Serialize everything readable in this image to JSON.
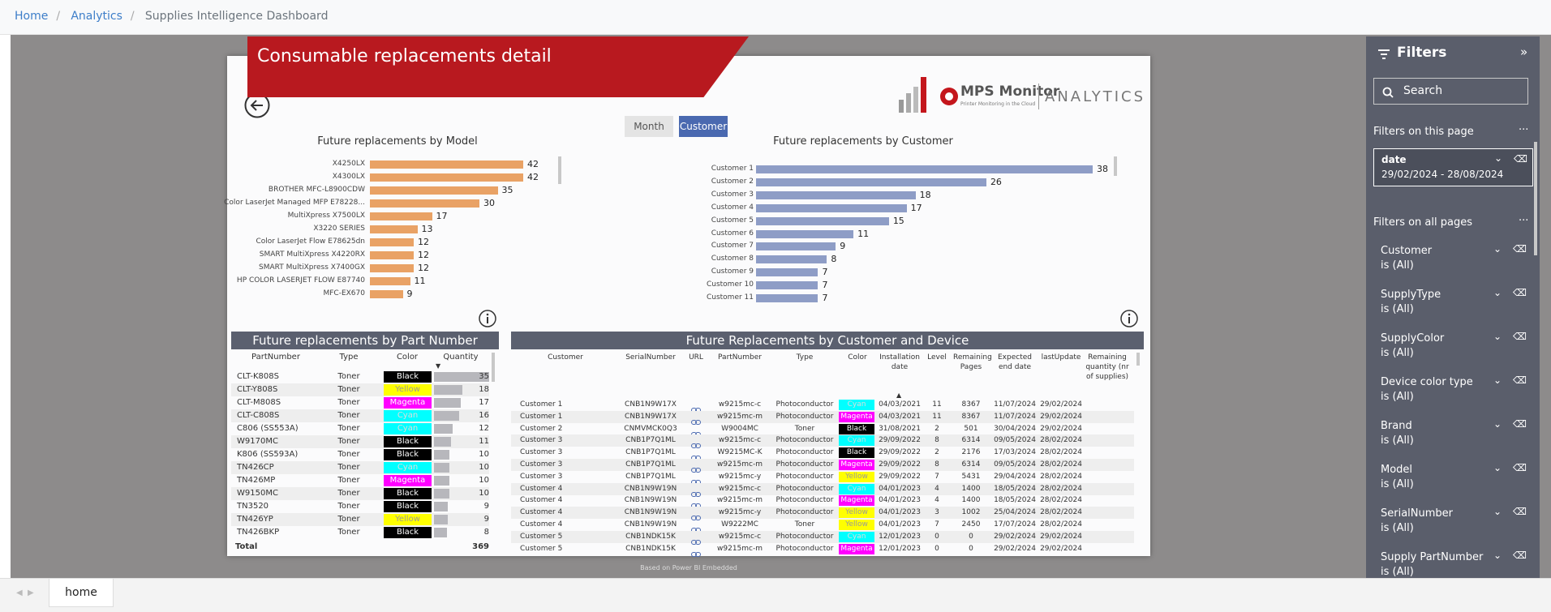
{
  "breadcrumb": [
    "Home",
    "Analytics",
    "Supplies Intelligence Dashboard"
  ],
  "report": {
    "title": "Consumable replacements detail",
    "logo_brand": "MPS Monitor",
    "logo_tagline": "Printer Monitoring in the Cloud",
    "logo_product": "ANALYTICS",
    "toggle": [
      "Month",
      "Customer"
    ],
    "footer": "Based on Power BI Embedded"
  },
  "chart_data": [
    {
      "type": "bar",
      "title": "Future replacements by Model",
      "color": "#e9a265",
      "categories": [
        "X4250LX",
        "X4300LX",
        "BROTHER MFC-L8900CDW",
        "Color LaserJet Managed MFP E78228...",
        "MultiXpress X7500LX",
        "X3220 SERIES",
        "Color LaserJet Flow E78625dn",
        "SMART MultiXpress X4220RX",
        "SMART MultiXpress X7400GX",
        "HP COLOR LASERJET FLOW E87740",
        "MFC-EX670"
      ],
      "values": [
        42,
        42,
        35,
        30,
        17,
        13,
        12,
        12,
        12,
        11,
        9
      ]
    },
    {
      "type": "bar",
      "title": "Future replacements by Customer",
      "color": "#8e9dc6",
      "categories": [
        "Customer 1",
        "Customer 2",
        "Customer 3",
        "Customer 4",
        "Customer 5",
        "Customer 6",
        "Customer 7",
        "Customer 8",
        "Customer 9",
        "Customer 10",
        "Customer 11"
      ],
      "values": [
        38,
        26,
        18,
        17,
        15,
        11,
        9,
        8,
        7,
        7,
        7
      ]
    }
  ],
  "part_table": {
    "title": "Future replacements by Part Number",
    "columns": [
      "PartNumber",
      "Type",
      "Color",
      "Quantity"
    ],
    "rows": [
      [
        "CLT-K808S",
        "Toner",
        "Black",
        35
      ],
      [
        "CLT-Y808S",
        "Toner",
        "Yellow",
        18
      ],
      [
        "CLT-M808S",
        "Toner",
        "Magenta",
        17
      ],
      [
        "CLT-C808S",
        "Toner",
        "Cyan",
        16
      ],
      [
        "C806 (SS553A)",
        "Toner",
        "Cyan",
        12
      ],
      [
        "W9170MC",
        "Toner",
        "Black",
        11
      ],
      [
        "K806 (SS593A)",
        "Toner",
        "Black",
        10
      ],
      [
        "TN426CP",
        "Toner",
        "Cyan",
        10
      ],
      [
        "TN426MP",
        "Toner",
        "Magenta",
        10
      ],
      [
        "W9150MC",
        "Toner",
        "Black",
        10
      ],
      [
        "TN3520",
        "Toner",
        "Black",
        9
      ],
      [
        "TN426YP",
        "Toner",
        "Yellow",
        9
      ],
      [
        "TN426BKP",
        "Toner",
        "Black",
        8
      ]
    ],
    "total_label": "Total",
    "total": 369
  },
  "device_table": {
    "title": "Future Replacements by Customer and Device",
    "columns": [
      "Customer",
      "SerialNumber",
      "URL",
      "PartNumber",
      "Type",
      "Color",
      "Installation date",
      "Level",
      "Remaining Pages",
      "Expected end date",
      "lastUpdate",
      "Remaining quantity (nr of supplies)"
    ],
    "rows": [
      [
        "Customer 1",
        "CNB1N9W17X",
        "w9215mc-c",
        "Photoconductor",
        "Cyan",
        "04/03/2021",
        11,
        8367,
        "11/07/2024",
        "29/02/2024"
      ],
      [
        "Customer 1",
        "CNB1N9W17X",
        "w9215mc-m",
        "Photoconductor",
        "Magenta",
        "04/03/2021",
        11,
        8367,
        "11/07/2024",
        "29/02/2024"
      ],
      [
        "Customer 2",
        "CNMVMCK0Q3",
        "W9004MC",
        "Toner",
        "Black",
        "31/08/2021",
        2,
        501,
        "30/04/2024",
        "29/02/2024"
      ],
      [
        "Customer 3",
        "CNB1P7Q1ML",
        "w9215mc-c",
        "Photoconductor",
        "Cyan",
        "29/09/2022",
        8,
        6314,
        "09/05/2024",
        "28/02/2024"
      ],
      [
        "Customer 3",
        "CNB1P7Q1ML",
        "W9215MC-K",
        "Photoconductor",
        "Black",
        "29/09/2022",
        2,
        2176,
        "17/03/2024",
        "28/02/2024"
      ],
      [
        "Customer 3",
        "CNB1P7Q1ML",
        "w9215mc-m",
        "Photoconductor",
        "Magenta",
        "29/09/2022",
        8,
        6314,
        "09/05/2024",
        "28/02/2024"
      ],
      [
        "Customer 3",
        "CNB1P7Q1ML",
        "w9215mc-y",
        "Photoconductor",
        "Yellow",
        "29/09/2022",
        7,
        5431,
        "29/04/2024",
        "28/02/2024"
      ],
      [
        "Customer 4",
        "CNB1N9W19N",
        "w9215mc-c",
        "Photoconductor",
        "Cyan",
        "04/01/2023",
        4,
        1400,
        "18/05/2024",
        "28/02/2024"
      ],
      [
        "Customer 4",
        "CNB1N9W19N",
        "w9215mc-m",
        "Photoconductor",
        "Magenta",
        "04/01/2023",
        4,
        1400,
        "18/05/2024",
        "28/02/2024"
      ],
      [
        "Customer 4",
        "CNB1N9W19N",
        "w9215mc-y",
        "Photoconductor",
        "Yellow",
        "04/01/2023",
        3,
        1002,
        "25/04/2024",
        "28/02/2024"
      ],
      [
        "Customer 4",
        "CNB1N9W19N",
        "W9222MC",
        "Toner",
        "Yellow",
        "04/01/2023",
        7,
        2450,
        "17/07/2024",
        "28/02/2024"
      ],
      [
        "Customer 5",
        "CNB1NDK15K",
        "w9215mc-c",
        "Photoconductor",
        "Cyan",
        "12/01/2023",
        0,
        0,
        "29/02/2024",
        "29/02/2024"
      ],
      [
        "Customer 5",
        "CNB1NDK15K",
        "w9215mc-m",
        "Photoconductor",
        "Magenta",
        "12/01/2023",
        0,
        0,
        "29/02/2024",
        "29/02/2024"
      ]
    ]
  },
  "filters": {
    "title": "Filters",
    "search": "Search",
    "page_heading": "Filters on this page",
    "page_filters": [
      {
        "name": "date",
        "value": "29/02/2024 - 28/08/2024"
      }
    ],
    "all_heading": "Filters on all pages",
    "all_filters": [
      {
        "name": "Customer",
        "value": "is (All)"
      },
      {
        "name": "SupplyType",
        "value": "is (All)"
      },
      {
        "name": "SupplyColor",
        "value": "is (All)"
      },
      {
        "name": "Device color type",
        "value": "is (All)"
      },
      {
        "name": "Brand",
        "value": "is (All)"
      },
      {
        "name": "Model",
        "value": "is (All)"
      },
      {
        "name": "SerialNumber",
        "value": "is (All)"
      },
      {
        "name": "Supply PartNumber",
        "value": "is (All)"
      }
    ]
  },
  "tabs": [
    "home"
  ]
}
